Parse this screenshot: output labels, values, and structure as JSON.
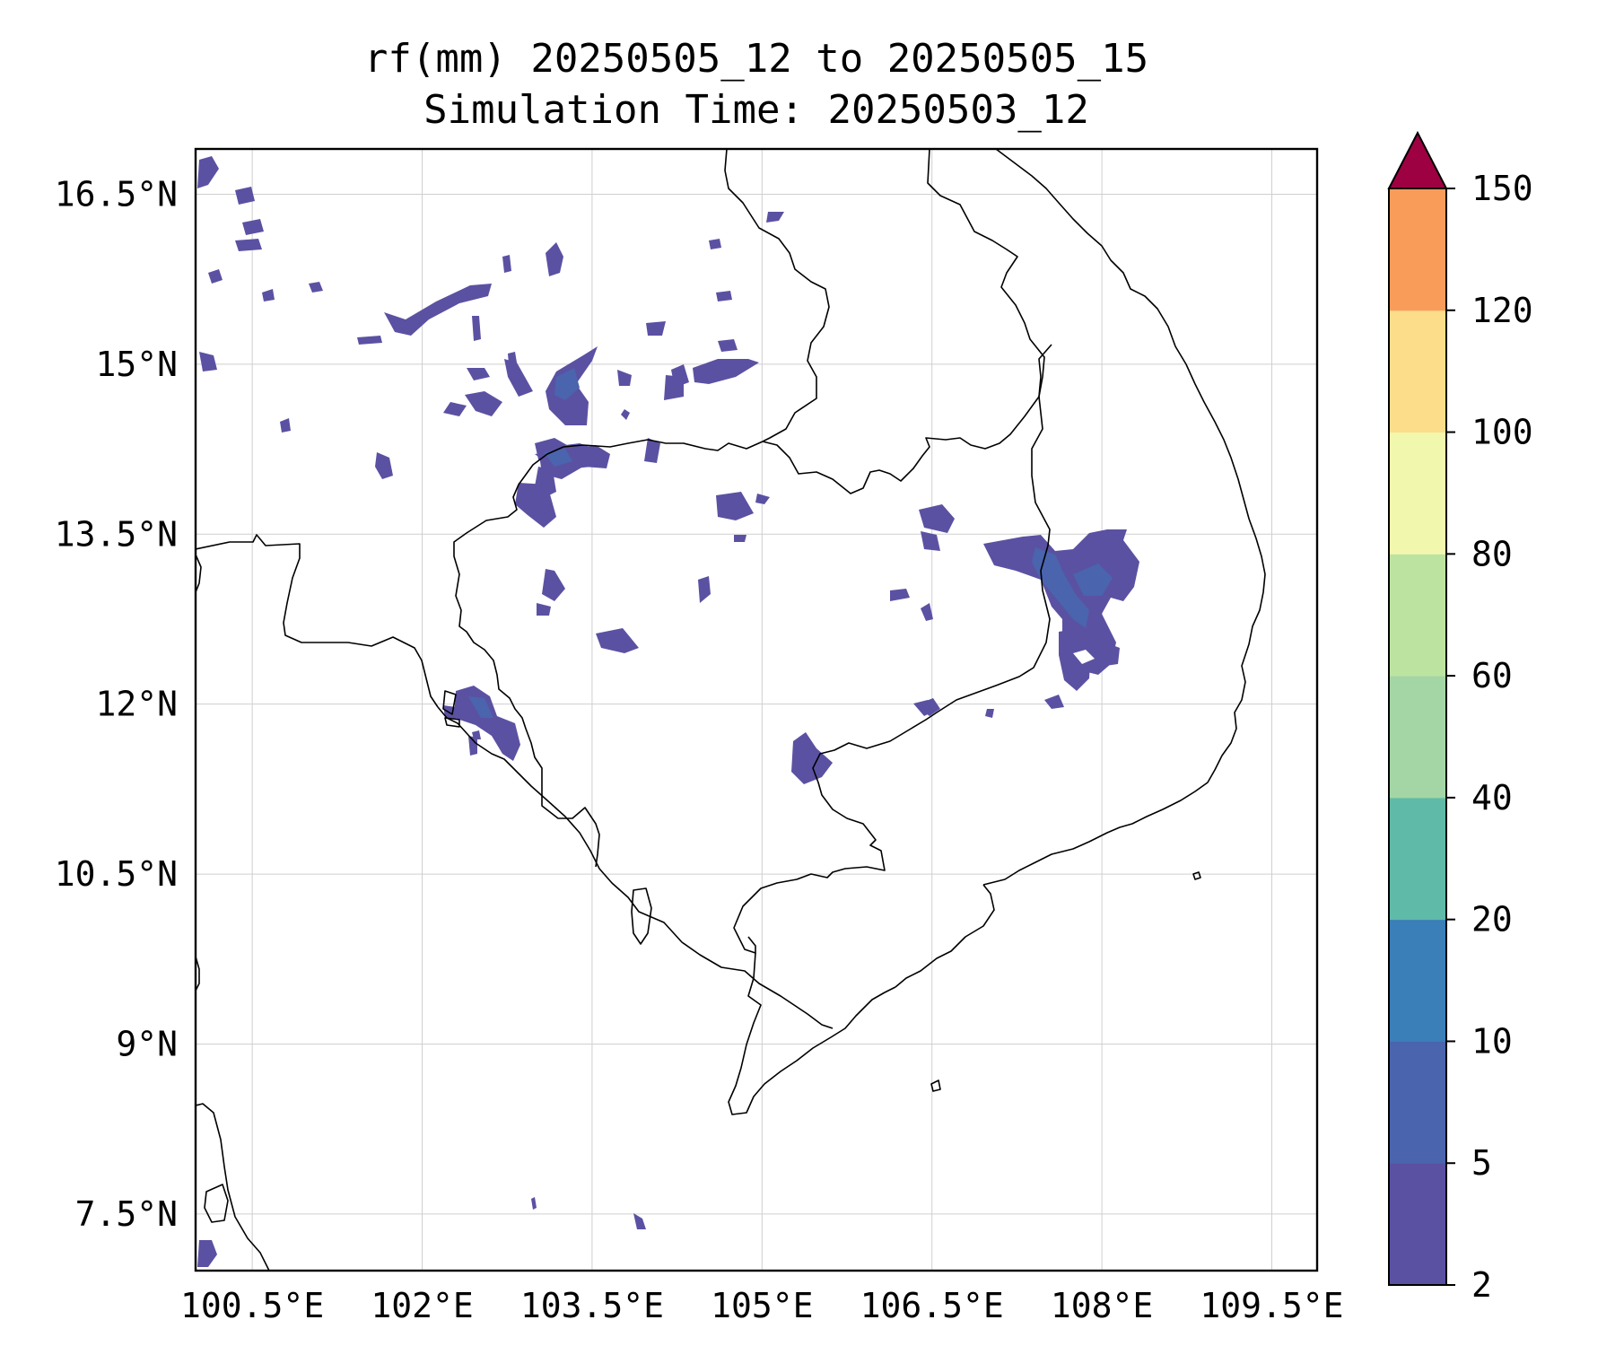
{
  "title": {
    "line1": "rf(mm) 20250505_12 to 20250505_15",
    "line2": "Simulation Time: 20250503_12"
  },
  "map": {
    "variable": "rf(mm)",
    "extent": {
      "lon": [
        100.0,
        109.9
      ],
      "lat": [
        7.0,
        16.9
      ]
    },
    "x_ticks": [
      {
        "value": 100.5,
        "label": "100.5°E"
      },
      {
        "value": 102.0,
        "label": "102°E"
      },
      {
        "value": 103.5,
        "label": "103.5°E"
      },
      {
        "value": 105.0,
        "label": "105°E"
      },
      {
        "value": 106.5,
        "label": "106.5°E"
      },
      {
        "value": 108.0,
        "label": "108°E"
      },
      {
        "value": 109.5,
        "label": "109.5°E"
      }
    ],
    "y_ticks": [
      {
        "value": 16.5,
        "label": "16.5°N"
      },
      {
        "value": 15.0,
        "label": "15°N"
      },
      {
        "value": 13.5,
        "label": "13.5°N"
      },
      {
        "value": 12.0,
        "label": "12°N"
      },
      {
        "value": 10.5,
        "label": "10.5°N"
      },
      {
        "value": 9.0,
        "label": "9°N"
      },
      {
        "value": 7.5,
        "label": "7.5°N"
      }
    ],
    "gridlines": true,
    "rain_areas": [
      {
        "lon": 103.6,
        "lat": 14.35,
        "category": "2-5"
      },
      {
        "lon": 103.4,
        "lat": 14.0,
        "category": "2-5"
      },
      {
        "lon": 103.85,
        "lat": 14.95,
        "category": "2-5"
      },
      {
        "lon": 102.8,
        "lat": 15.6,
        "category": "2-5"
      },
      {
        "lon": 104.8,
        "lat": 14.95,
        "category": "2-5"
      },
      {
        "lon": 107.9,
        "lat": 13.1,
        "category": "2-5"
      },
      {
        "lon": 107.95,
        "lat": 12.55,
        "category": "2-5"
      },
      {
        "lon": 105.5,
        "lat": 11.7,
        "category": "2-5"
      },
      {
        "lon": 102.3,
        "lat": 11.95,
        "category": "2-5"
      },
      {
        "lon": 104.0,
        "lat": 12.5,
        "category": "2-5"
      },
      {
        "lon": 106.7,
        "lat": 13.7,
        "category": "2-5"
      },
      {
        "lon": 103.4,
        "lat": 16.1,
        "category": "2-5"
      },
      {
        "lon": 103.5,
        "lat": 14.4,
        "category": "5-10"
      },
      {
        "lon": 107.85,
        "lat": 13.0,
        "category": "5-10"
      },
      {
        "lon": 103.75,
        "lat": 15.0,
        "category": "10-20"
      }
    ]
  },
  "colorbar": {
    "levels": [
      2,
      5,
      10,
      20,
      40,
      60,
      80,
      100,
      120,
      150
    ],
    "labels": [
      "2",
      "5",
      "10",
      "20",
      "40",
      "60",
      "80",
      "100",
      "120",
      "150"
    ],
    "colors": [
      "#5b51a2",
      "#4a64ad",
      "#3a7fb8",
      "#5fbaa8",
      "#a3d6a4",
      "#bde3a0",
      "#f1f7ad",
      "#fbdd8a",
      "#f99c5a",
      "#d53e4f"
    ],
    "extend_color": "#9e0142",
    "extend": "max"
  }
}
